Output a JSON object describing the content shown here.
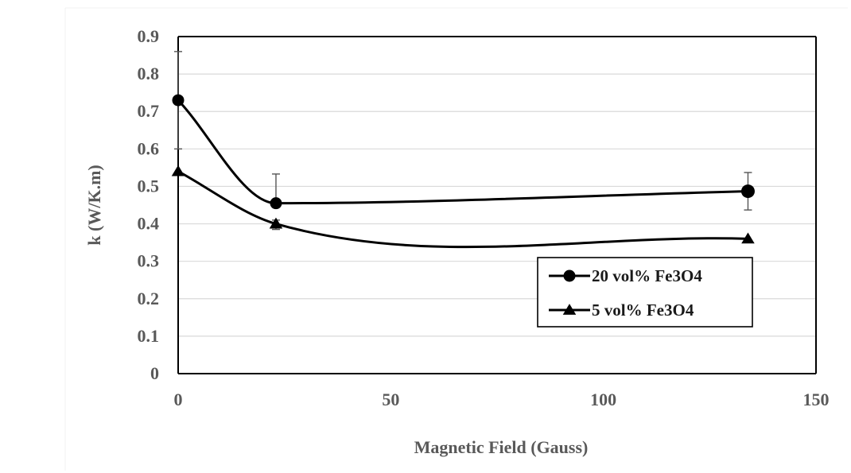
{
  "chart_data": {
    "type": "line",
    "xlabel": "Magnetic Field (Gauss)",
    "ylabel": "k (W/K.m)",
    "xlim": [
      0,
      150
    ],
    "ylim": [
      0,
      0.9
    ],
    "x_ticks": [
      0,
      50,
      100,
      150
    ],
    "y_ticks": [
      0,
      0.1,
      0.2,
      0.3,
      0.4,
      0.5,
      0.6,
      0.7,
      0.8,
      0.9
    ],
    "x_tick_labels": [
      "0",
      "50",
      "100",
      "150"
    ],
    "y_tick_labels": [
      "0",
      "0.1",
      "0.2",
      "0.3",
      "0.4",
      "0.5",
      "0.6",
      "0.7",
      "0.8",
      "0.9"
    ],
    "grid": "horizontal",
    "legend_position": "right",
    "smooth": true,
    "series": [
      {
        "name": "20 vol% Fe3O4",
        "marker": "circle",
        "x": [
          0,
          23,
          134
        ],
        "y": [
          0.73,
          0.455,
          0.487
        ],
        "error_upper": [
          0.86,
          0.533,
          0.537
        ],
        "error_lower": [
          0.6,
          0.455,
          0.437
        ]
      },
      {
        "name": "5 vol% Fe3O4",
        "marker": "triangle",
        "x": [
          0,
          23,
          134
        ],
        "y": [
          0.54,
          0.4,
          0.36
        ],
        "error_upper": [
          0.54,
          0.41,
          0.36
        ],
        "error_lower": [
          0.54,
          0.385,
          0.36
        ]
      }
    ],
    "colors": {
      "line": "#000000",
      "grid": "#d9d9d9",
      "axis": "#000000",
      "text": "#595959"
    }
  }
}
